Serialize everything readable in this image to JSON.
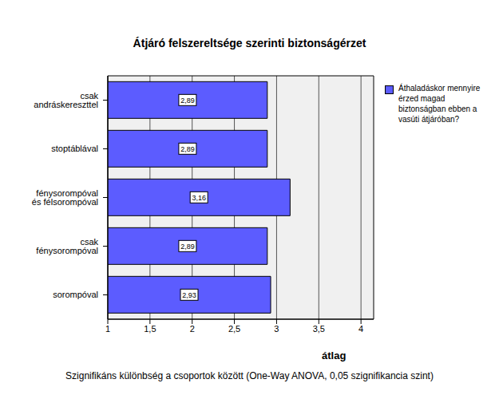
{
  "chart_data": {
    "type": "bar",
    "title": "Átjáró felszereltsége szerinti biztonságérzet",
    "orientation": "horizontal",
    "categories": [
      "csak andráskereszttel",
      "stoptáblával",
      "fénysorompóval és félsorompóval",
      "csak fénysorompóval",
      "sorompóval"
    ],
    "series": [
      {
        "name": "Áthaladáskor mennyire érzed magad biztonságban ebben a vasúti átjáróban?",
        "color": "#5c5cff",
        "values": [
          2.89,
          2.89,
          3.16,
          2.89,
          2.93
        ],
        "value_labels": [
          "2,89",
          "2,89",
          "3,16",
          "2,89",
          "2,93"
        ]
      }
    ],
    "x_label": "átlag",
    "xlim": [
      1,
      4.15
    ],
    "xticks": [
      1,
      {
        "value": 1.5,
        "label": "1,5"
      },
      2,
      {
        "value": 2.5,
        "label": "2,5"
      },
      3,
      {
        "value": 3.5,
        "label": "3,5"
      },
      4
    ],
    "grid": true,
    "data_labels": true,
    "legend": "top-right",
    "annotation": "Szignifikáns különbség a csoportok között (One-Way ANOVA, 0,05 szignifikancia szint)"
  }
}
